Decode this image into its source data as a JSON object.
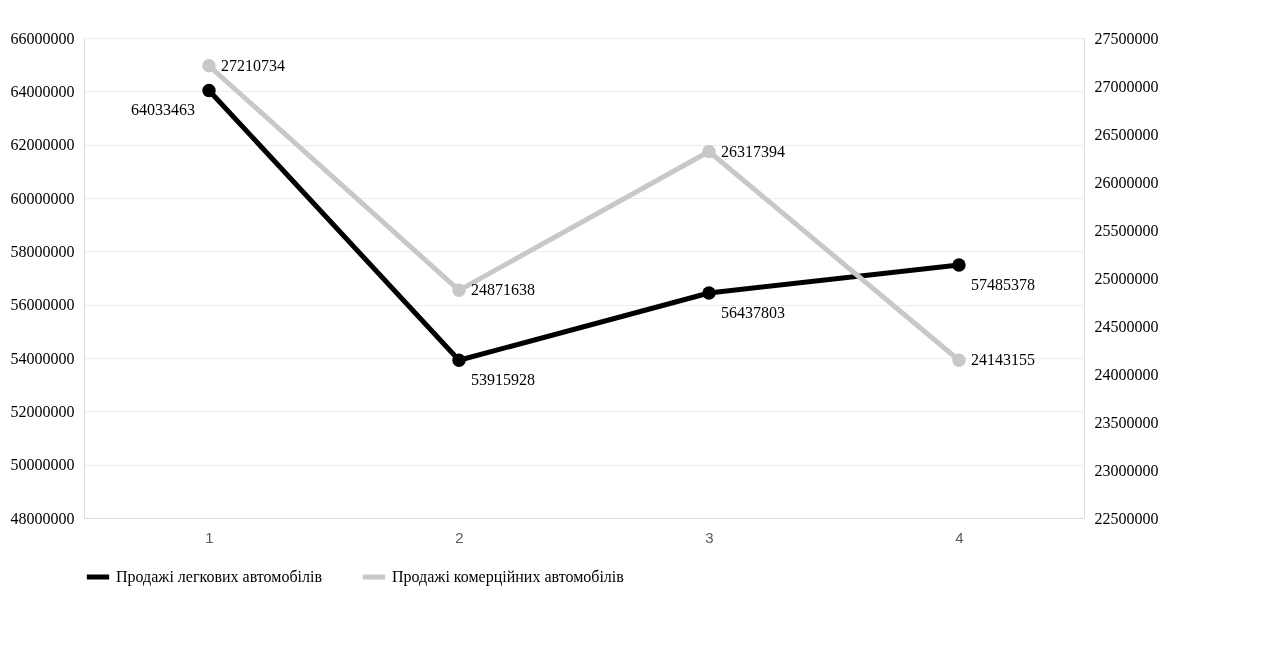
{
  "chart_data": {
    "type": "line",
    "categories": [
      "1",
      "2",
      "3",
      "4"
    ],
    "series": [
      {
        "name": "Продажі легкових автомобілів",
        "color": "#000000",
        "values": [
          64033463,
          53915928,
          56437803,
          57485378
        ]
      },
      {
        "name": "Продажі комерційних автомобілів",
        "color": "#c8c8c8",
        "values": [
          27210734,
          24871638,
          26317394,
          24143155
        ],
        "axis": "y2"
      }
    ],
    "ylim": [
      48000000,
      66000000
    ],
    "yticks": [
      48000000,
      50000000,
      52000000,
      54000000,
      56000000,
      58000000,
      60000000,
      62000000,
      64000000,
      66000000
    ],
    "y2lim": [
      22500000,
      27500000
    ],
    "y2ticks": [
      22500000,
      23000000,
      23500000,
      24000000,
      24500000,
      25000000,
      25500000,
      26000000,
      26500000,
      27000000,
      27500000
    ],
    "data_labels": true,
    "grid": "y",
    "legend": "bottom",
    "marker": "circle",
    "line_style": "solid"
  }
}
